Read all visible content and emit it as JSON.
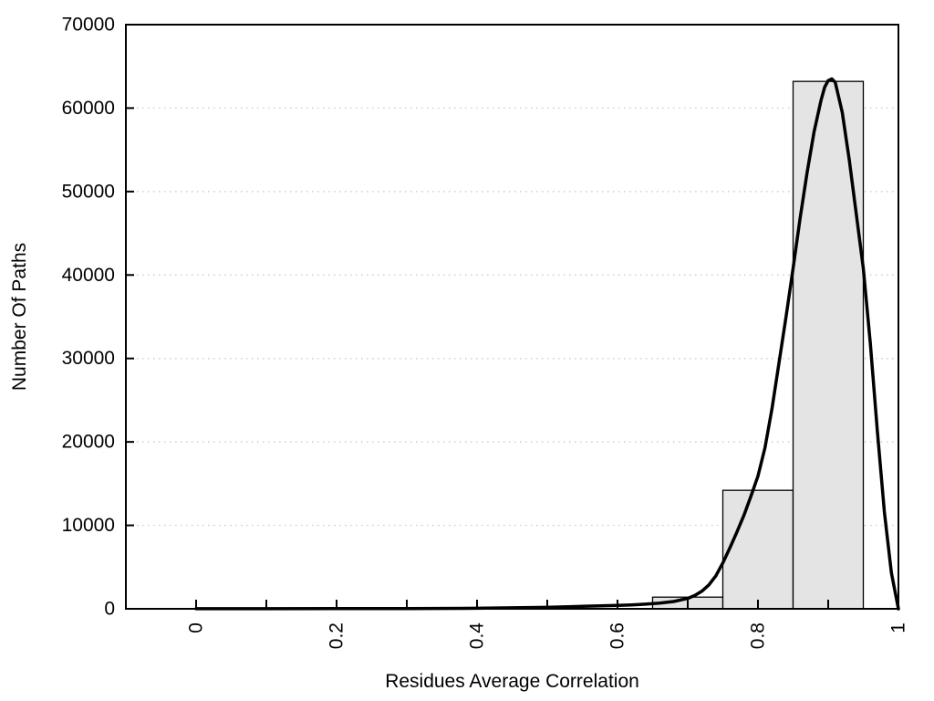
{
  "figure": {
    "background": "#ffffff",
    "axis_color": "#000000",
    "grid_color": "#c4c4c4",
    "bar_fill": "#e4e4e4",
    "bar_stroke": "#000000",
    "curve_color": "#000000"
  },
  "chart_data": {
    "type": "bar",
    "subtype": "histogram-with-fit-curve",
    "title": "",
    "xlabel": "Residues Average Correlation",
    "ylabel": "Number Of Paths",
    "xlim": [
      -0.1,
      1.0
    ],
    "ylim": [
      0,
      70000
    ],
    "grid": "horizontal-dotted",
    "legend": "none",
    "x_minor_tick_step": 0.1,
    "x_major_ticks": [
      0,
      0.2,
      0.4,
      0.6,
      0.8,
      1
    ],
    "x_tick_labels": [
      "0",
      "0.2",
      "0.4",
      "0.6",
      "0.8",
      "1"
    ],
    "x_tick_label_rotation_deg": -90,
    "y_ticks": [
      0,
      10000,
      20000,
      30000,
      40000,
      50000,
      60000,
      70000
    ],
    "y_tick_labels": [
      "0",
      "10000",
      "20000",
      "30000",
      "40000",
      "50000",
      "60000",
      "70000"
    ],
    "bars": [
      {
        "x_start": 0.65,
        "x_end": 0.75,
        "value": 1400
      },
      {
        "x_start": 0.75,
        "x_end": 0.85,
        "value": 14200
      },
      {
        "x_start": 0.85,
        "x_end": 0.95,
        "value": 63200
      }
    ],
    "curve": {
      "name": "fit-curve",
      "x": [
        0.0,
        0.1,
        0.2,
        0.3,
        0.4,
        0.5,
        0.55,
        0.6,
        0.62,
        0.64,
        0.66,
        0.68,
        0.7,
        0.71,
        0.72,
        0.73,
        0.74,
        0.75,
        0.76,
        0.77,
        0.78,
        0.79,
        0.8,
        0.81,
        0.82,
        0.83,
        0.84,
        0.85,
        0.86,
        0.87,
        0.88,
        0.89,
        0.895,
        0.9,
        0.905,
        0.91,
        0.92,
        0.93,
        0.94,
        0.95,
        0.96,
        0.97,
        0.98,
        0.99,
        1.0
      ],
      "y": [
        15,
        15,
        20,
        35,
        70,
        180,
        290,
        400,
        470,
        560,
        680,
        880,
        1250,
        1600,
        2100,
        2850,
        3950,
        5500,
        7300,
        9200,
        11200,
        13500,
        15900,
        19300,
        24000,
        29500,
        35000,
        40800,
        46800,
        52300,
        57200,
        61000,
        62500,
        63300,
        63500,
        63100,
        59500,
        53800,
        47300,
        40800,
        31800,
        21300,
        11600,
        4300,
        0
      ]
    }
  }
}
